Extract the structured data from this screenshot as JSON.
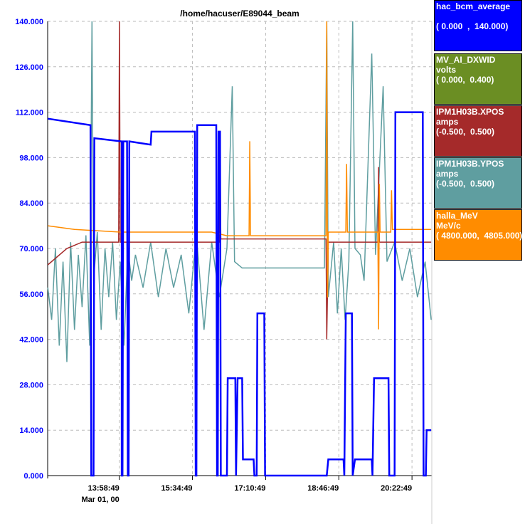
{
  "chart_data": {
    "type": "line",
    "title": "/home/hacuser/E89044_beam",
    "grid": true,
    "legend_placement": "right",
    "y_axis": {
      "series": "hac_bcm_average",
      "ylim": [
        0,
        140
      ],
      "tick_labels": [
        "0.000",
        "14.000",
        "28.000",
        "42.000",
        "56.000",
        "70.000",
        "84.000",
        "98.000",
        "112.000",
        "126.000",
        "140.000"
      ],
      "tick_values": [
        0,
        14,
        28,
        42,
        56,
        70,
        84,
        98,
        112,
        126,
        140
      ],
      "color": "#0000ff"
    },
    "x_axis": {
      "tick_labels": [
        "13:58:49",
        "15:34:49",
        "17:10:49",
        "18:46:49",
        "20:22:49"
      ],
      "date_label": "Mar 01, 00",
      "xlim": [
        "12:24:49",
        "20:48:49"
      ]
    },
    "series": [
      {
        "name": "hac_bcm_average",
        "units": "",
        "range_label": "( 0.000  ,  140.000)",
        "range": [
          0,
          140
        ],
        "color": "#0000ff",
        "points": [
          [
            "12:25",
            110
          ],
          [
            "13:21",
            108
          ],
          [
            "13:22",
            0
          ],
          [
            "13:25",
            0
          ],
          [
            "13:26",
            104
          ],
          [
            "14:02",
            103
          ],
          [
            "14:02",
            0
          ],
          [
            "14:03",
            0
          ],
          [
            "14:04",
            103
          ],
          [
            "14:09",
            103
          ],
          [
            "14:10",
            0
          ],
          [
            "14:11",
            0
          ],
          [
            "14:12",
            103
          ],
          [
            "14:40",
            102
          ],
          [
            "14:41",
            106
          ],
          [
            "15:38",
            106
          ],
          [
            "15:39",
            0
          ],
          [
            "15:40",
            0
          ],
          [
            "15:41",
            108
          ],
          [
            "16:06",
            108
          ],
          [
            "16:07",
            0
          ],
          [
            "16:08",
            0
          ],
          [
            "16:09",
            106
          ],
          [
            "16:11",
            106
          ],
          [
            "16:12",
            0
          ],
          [
            "16:20",
            0
          ],
          [
            "16:21",
            30
          ],
          [
            "16:31",
            30
          ],
          [
            "16:32",
            0
          ],
          [
            "16:34",
            30
          ],
          [
            "16:40",
            30
          ],
          [
            "16:41",
            5
          ],
          [
            "16:55",
            5
          ],
          [
            "16:56",
            0
          ],
          [
            "16:59",
            0
          ],
          [
            "17:00",
            50
          ],
          [
            "17:09",
            50
          ],
          [
            "17:10",
            0
          ],
          [
            "18:31",
            0
          ],
          [
            "18:33",
            5
          ],
          [
            "18:53",
            5
          ],
          [
            "18:54",
            0
          ],
          [
            "18:56",
            50
          ],
          [
            "19:04",
            50
          ],
          [
            "19:05",
            0
          ],
          [
            "19:08",
            5
          ],
          [
            "19:30",
            5
          ],
          [
            "19:31",
            0
          ],
          [
            "19:33",
            30
          ],
          [
            "19:52",
            30
          ],
          [
            "19:53",
            0
          ],
          [
            "20:00",
            0
          ],
          [
            "20:01",
            112
          ],
          [
            "20:37",
            112
          ],
          [
            "20:38",
            0
          ],
          [
            "20:41",
            0
          ],
          [
            "20:42",
            14
          ],
          [
            "20:48",
            14
          ]
        ]
      },
      {
        "name": "MV_AI_DXWID",
        "units": "volts",
        "range_label": "( 0.000,  0.400)",
        "range": [
          0,
          0.4
        ],
        "color": "#6b8e23",
        "points": []
      },
      {
        "name": "IPM1H03B.XPOS",
        "units": "amps",
        "range_label": "(-0.500,  0.500)",
        "range": [
          -0.5,
          0.5
        ],
        "color": "#a52a2a",
        "points": [
          [
            "12:25",
            -0.036
          ],
          [
            "12:50",
            0.0
          ],
          [
            "13:10",
            0.014
          ],
          [
            "13:58",
            0.014
          ],
          [
            "13:59",
            0.5
          ],
          [
            "14:00",
            0.014
          ],
          [
            "16:10",
            0.014
          ],
          [
            "16:11",
            0.214
          ],
          [
            "16:12",
            0.021
          ],
          [
            "18:30",
            0.021
          ],
          [
            "18:31",
            -0.2
          ],
          [
            "18:33",
            0.014
          ],
          [
            "19:38",
            0.014
          ],
          [
            "19:39",
            0.179
          ],
          [
            "19:40",
            0.014
          ],
          [
            "20:48",
            0.014
          ]
        ]
      },
      {
        "name": "IPM1H03B.YPOS",
        "units": "amps",
        "range_label": "(-0.500,  0.500)",
        "range": [
          -0.5,
          0.5
        ],
        "color": "#5f9ea0",
        "points": [
          [
            "12:25",
            -0.086
          ],
          [
            "12:30",
            -0.157
          ],
          [
            "12:35",
            0.0
          ],
          [
            "12:40",
            -0.214
          ],
          [
            "12:45",
            -0.029
          ],
          [
            "12:50",
            -0.25
          ],
          [
            "12:55",
            0.014
          ],
          [
            "13:00",
            -0.179
          ],
          [
            "13:05",
            -0.014
          ],
          [
            "13:10",
            -0.129
          ],
          [
            "13:15",
            0.029
          ],
          [
            "13:20",
            -0.214
          ],
          [
            "13:23",
            0.5
          ],
          [
            "13:25",
            -0.071
          ],
          [
            "13:30",
            0.036
          ],
          [
            "13:35",
            -0.179
          ],
          [
            "13:40",
            0.0
          ],
          [
            "13:45",
            -0.107
          ],
          [
            "13:50",
            0.014
          ],
          [
            "13:55",
            -0.157
          ],
          [
            "14:00",
            -0.029
          ],
          [
            "14:05",
            -0.214
          ],
          [
            "14:10",
            0.0
          ],
          [
            "14:15",
            -0.071
          ],
          [
            "14:20",
            -0.014
          ],
          [
            "14:30",
            -0.086
          ],
          [
            "14:40",
            0.014
          ],
          [
            "14:50",
            -0.107
          ],
          [
            "15:00",
            0.0
          ],
          [
            "15:10",
            -0.086
          ],
          [
            "15:20",
            -0.014
          ],
          [
            "15:30",
            -0.143
          ],
          [
            "15:40",
            0.029
          ],
          [
            "15:50",
            -0.179
          ],
          [
            "16:00",
            0.014
          ],
          [
            "16:10",
            -0.107
          ],
          [
            "16:20",
            0.0
          ],
          [
            "16:27",
            0.357
          ],
          [
            "16:30",
            -0.029
          ],
          [
            "16:40",
            -0.043
          ],
          [
            "16:50",
            -0.043
          ],
          [
            "18:28",
            -0.043
          ],
          [
            "18:31",
            0.5
          ],
          [
            "18:33",
            -0.107
          ],
          [
            "18:40",
            0.014
          ],
          [
            "18:45",
            -0.143
          ],
          [
            "18:50",
            0.0
          ],
          [
            "18:55",
            -0.157
          ],
          [
            "19:00",
            -0.029
          ],
          [
            "19:05",
            0.5
          ],
          [
            "19:08",
            0.0
          ],
          [
            "19:15",
            -0.014
          ],
          [
            "19:20",
            -0.071
          ],
          [
            "19:30",
            0.429
          ],
          [
            "19:35",
            -0.014
          ],
          [
            "19:45",
            0.357
          ],
          [
            "19:50",
            -0.029
          ],
          [
            "20:00",
            0.014
          ],
          [
            "20:10",
            -0.071
          ],
          [
            "20:20",
            0.0
          ],
          [
            "20:30",
            -0.107
          ],
          [
            "20:40",
            -0.029
          ],
          [
            "20:48",
            -0.157
          ]
        ]
      },
      {
        "name": "halla_MeV",
        "units": "MeV/c",
        "range_label": "( 4800.000,  4805.000)",
        "range": [
          4800,
          4805
        ],
        "color": "#ff8c00",
        "points": [
          [
            "12:25",
            4802.75
          ],
          [
            "13:00",
            4802.71
          ],
          [
            "14:00",
            4802.68
          ],
          [
            "16:00",
            4802.68
          ],
          [
            "16:20",
            4802.64
          ],
          [
            "16:49",
            4802.64
          ],
          [
            "16:50",
            4803.68
          ],
          [
            "16:51",
            4802.64
          ],
          [
            "18:30",
            4802.64
          ],
          [
            "18:31",
            4805.0
          ],
          [
            "18:32",
            4801.96
          ],
          [
            "18:33",
            4802.68
          ],
          [
            "18:56",
            4802.68
          ],
          [
            "18:57",
            4803.43
          ],
          [
            "18:58",
            4802.68
          ],
          [
            "19:38",
            4802.68
          ],
          [
            "19:39",
            4801.61
          ],
          [
            "19:40",
            4803.21
          ],
          [
            "19:41",
            4802.68
          ],
          [
            "19:55",
            4802.68
          ],
          [
            "19:56",
            4803.14
          ],
          [
            "19:57",
            4802.71
          ],
          [
            "20:48",
            4802.71
          ]
        ]
      }
    ]
  }
}
